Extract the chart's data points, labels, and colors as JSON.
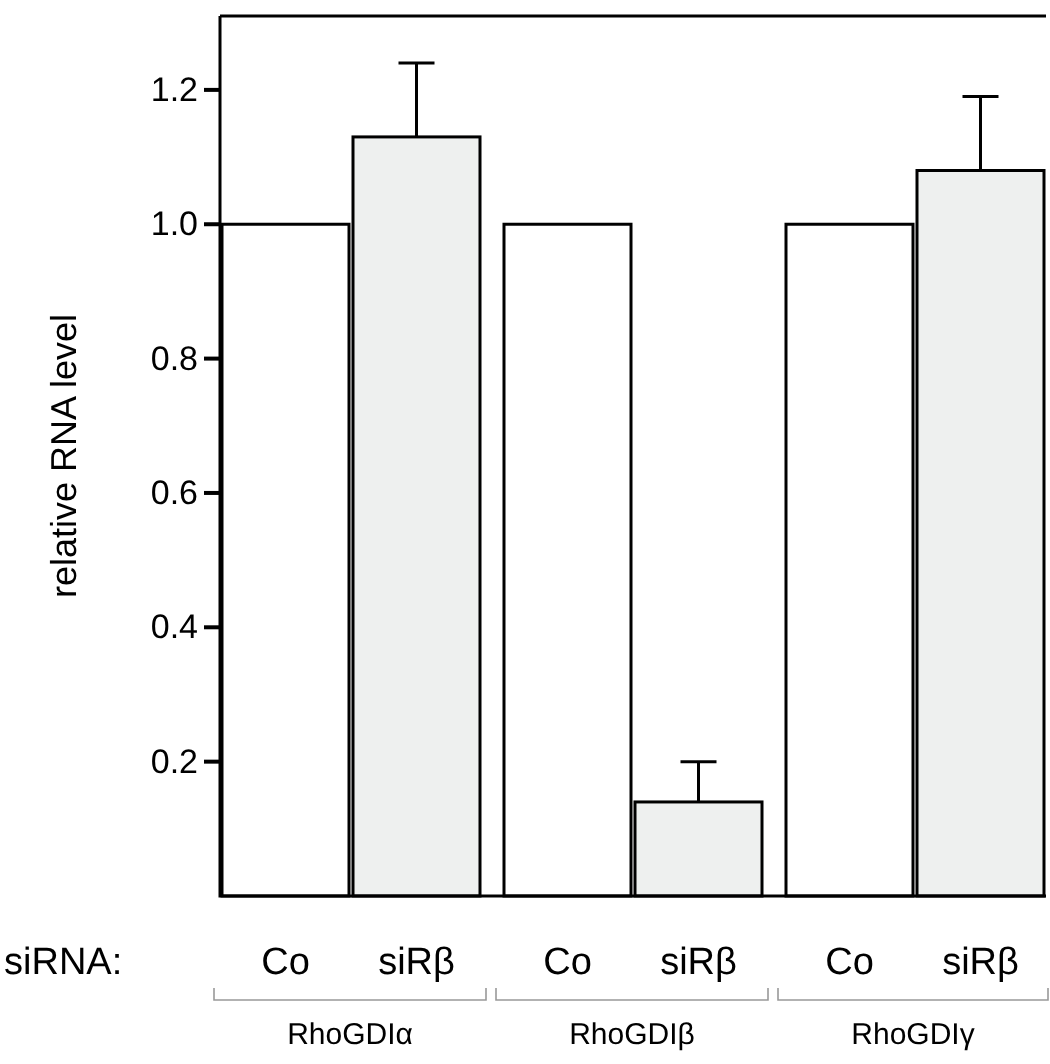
{
  "chart_data": {
    "type": "bar",
    "ylabel": "relative RNA level",
    "xlabel": "siRNA:",
    "categories": [
      "Co",
      "siRβ",
      "Co",
      "siRβ",
      "Co",
      "siRβ"
    ],
    "values": [
      1.0,
      1.13,
      1.0,
      0.14,
      1.0,
      1.08
    ],
    "colors": [
      "#ffffff",
      "#eef0ef",
      "#ffffff",
      "#eef0ef",
      "#ffffff",
      "#eef0ef"
    ],
    "errors": [
      null,
      [
        1.13,
        1.24
      ],
      null,
      [
        0.14,
        0.2
      ],
      null,
      [
        1.08,
        1.19
      ]
    ],
    "ylim": [
      0,
      1.31
    ],
    "yticks": [
      0.2,
      0.4,
      0.6,
      0.8,
      {
        "value": 1,
        "label": "1.0"
      },
      1.2
    ],
    "annotations": [
      "RhoGDIα",
      "RhoGDIβ",
      "RhoGDIγ"
    ]
  }
}
